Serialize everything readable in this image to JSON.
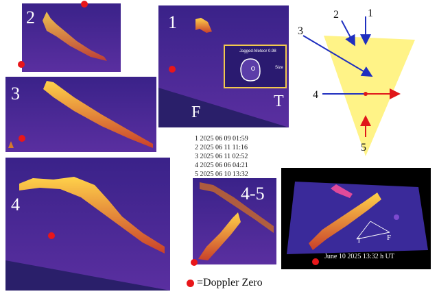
{
  "panels": {
    "p2": {
      "label": "2"
    },
    "p3": {
      "label": "3"
    },
    "p4": {
      "label": "4"
    },
    "p1": {
      "label": "1",
      "axis_f": "F",
      "axis_t": "T",
      "inset_line1": "Jagged-Meteor 0.98",
      "inset_line2": "Size"
    },
    "p45": {
      "label": "4-5"
    },
    "p3d": {
      "axis_t": "T",
      "axis_f": "F",
      "caption": "June 10 2025 13:32 h UT"
    }
  },
  "dates": [
    "1 2025 06 09 01:59",
    "2 2025 06 11 11:16",
    "3 2025 06 11 02:52",
    "4 2025 06 06 04:21",
    "5 2025 06 10 13:32"
  ],
  "beams": {
    "b1": "1",
    "b2": "2",
    "b3": "3",
    "b4": "4",
    "b5": "5"
  },
  "legend": {
    "text": "=Doppler Zero"
  },
  "colors": {
    "background": "#3b1f8c",
    "trace": "#f0a020",
    "marker": "#e8161a",
    "beam_blue": "#1f2fbf",
    "beam_red": "#e0161a",
    "fan": "#fff27a"
  }
}
